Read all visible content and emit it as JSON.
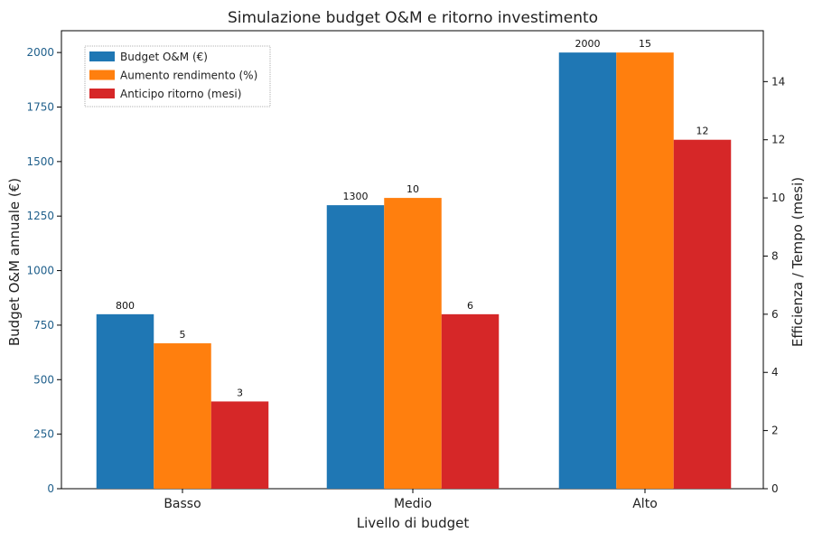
{
  "chart_data": {
    "type": "bar",
    "title": "Simulazione budget O&M e ritorno investimento",
    "xlabel": "Livello di budget",
    "ylabel": "Budget O&M annuale (€)",
    "ylabel_right": "Efficienza / Tempo (mesi)",
    "categories": [
      "Basso",
      "Medio",
      "Alto"
    ],
    "ylim": [
      0,
      2100
    ],
    "ylim_right": [
      0,
      15.75
    ],
    "yticks": [
      "0",
      "250",
      "500",
      "750",
      "1000",
      "1250",
      "1500",
      "1750",
      "2000"
    ],
    "yticks_right": [
      "0",
      "2",
      "4",
      "6",
      "8",
      "10",
      "12",
      "14"
    ],
    "legend_position": "top-left",
    "series": [
      {
        "name": "Budget O&M (€)",
        "axis": "left",
        "color": "#1f77b4",
        "values": [
          800,
          1300,
          2000
        ],
        "labels": [
          "800",
          "1300",
          "2000"
        ]
      },
      {
        "name": "Aumento rendimento (%)",
        "axis": "right",
        "color": "#ff7f0e",
        "values": [
          5,
          10,
          15
        ],
        "labels": [
          "5",
          "10",
          "15"
        ]
      },
      {
        "name": "Anticipo ritorno (mesi)",
        "axis": "right",
        "color": "#d62728",
        "values": [
          3,
          6,
          12
        ],
        "labels": [
          "3",
          "6",
          "12"
        ]
      }
    ],
    "left_tick_color": "#1f5f8b"
  }
}
